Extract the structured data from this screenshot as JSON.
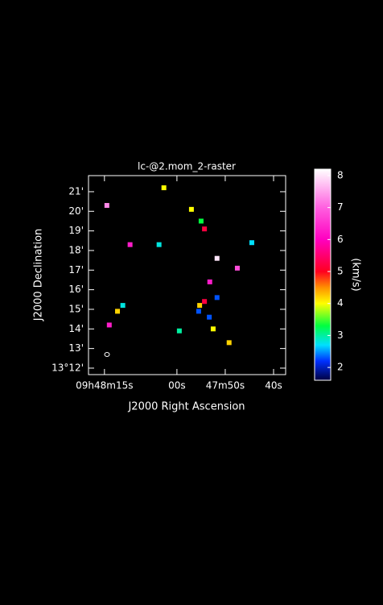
{
  "chart_data": {
    "type": "raster",
    "title": "lc-@2.mom_2-raster",
    "xlabel": "J2000 Right Ascension",
    "ylabel": "J2000 Declination",
    "colorbar_label": "(km/s)",
    "xlim": [
      18.3,
      -22.5
    ],
    "ylim": [
      11.67,
      21.82
    ],
    "xticks": [
      {
        "value": 15,
        "label": "09h48m15s"
      },
      {
        "value": 0,
        "label": "00s"
      },
      {
        "value": -10,
        "label": "47m50s"
      },
      {
        "value": -20,
        "label": "40s"
      }
    ],
    "yticks": [
      {
        "value": 12,
        "label": "13°12'"
      },
      {
        "value": 13,
        "label": "13'"
      },
      {
        "value": 14,
        "label": "14'"
      },
      {
        "value": 15,
        "label": "15'"
      },
      {
        "value": 16,
        "label": "16'"
      },
      {
        "value": 17,
        "label": "17'"
      },
      {
        "value": 18,
        "label": "18'"
      },
      {
        "value": 19,
        "label": "19'"
      },
      {
        "value": 20,
        "label": "20'"
      },
      {
        "value": 21,
        "label": "21'"
      }
    ],
    "clim": [
      1.6,
      8.2
    ],
    "cticks": [
      2,
      3,
      4,
      5,
      6,
      7,
      8
    ],
    "colormap": [
      {
        "value": 1.6,
        "color": "#000040"
      },
      {
        "value": 2.2,
        "color": "#0030ff"
      },
      {
        "value": 2.7,
        "color": "#00e0ff"
      },
      {
        "value": 3.3,
        "color": "#00ff40"
      },
      {
        "value": 4.0,
        "color": "#ffff00"
      },
      {
        "value": 4.5,
        "color": "#ff9000"
      },
      {
        "value": 5.0,
        "color": "#ff0020"
      },
      {
        "value": 6.0,
        "color": "#ff00c0"
      },
      {
        "value": 7.0,
        "color": "#ff60e0"
      },
      {
        "value": 8.2,
        "color": "#ffffff"
      }
    ],
    "x": [
      14.5,
      2.7,
      -3.0,
      -5.0,
      -5.7,
      9.7,
      3.7,
      -15.5,
      -8.3,
      -12.5,
      -6.8,
      -8.3,
      -5.7,
      -4.7,
      11.2,
      12.3,
      -6.7,
      14.0,
      -0.5,
      -7.5,
      -10.8,
      -4.5
    ],
    "y": [
      20.3,
      21.2,
      20.1,
      19.5,
      19.1,
      18.3,
      18.3,
      18.4,
      17.6,
      17.1,
      16.4,
      15.6,
      15.4,
      15.2,
      15.2,
      14.9,
      14.6,
      14.2,
      13.9,
      14.0,
      13.3,
      14.9
    ],
    "values": [
      7.3,
      4.0,
      4.0,
      3.3,
      5.2,
      6.3,
      2.8,
      2.7,
      8.0,
      6.8,
      6.3,
      2.3,
      5.2,
      4.2,
      2.8,
      4.2,
      2.3,
      6.3,
      3.0,
      4.0,
      4.2,
      2.3
    ]
  }
}
